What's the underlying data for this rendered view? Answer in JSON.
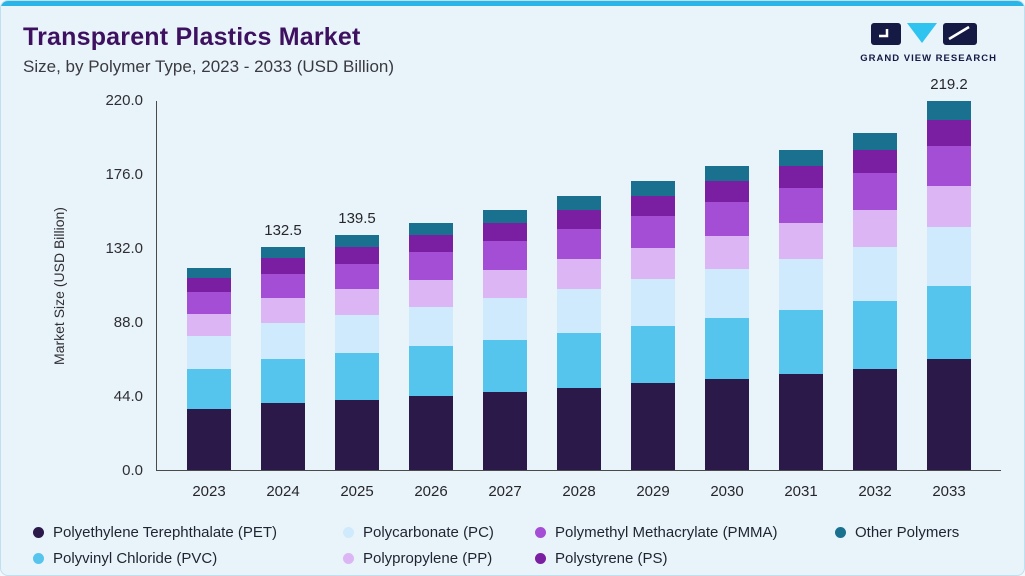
{
  "header": {
    "title": "Transparent Plastics Market",
    "subtitle": "Size, by Polymer Type, 2023 - 2033 (USD Billion)",
    "brand": "GRAND VIEW RESEARCH"
  },
  "chart_data": {
    "type": "bar",
    "stacked": true,
    "title": "Transparent Plastics Market Size, by Polymer Type, 2023 - 2033 (USD Billion)",
    "ylabel": "Market Size (USD Billion)",
    "xlabel": "",
    "ylim": [
      0,
      220
    ],
    "ytick_labels": [
      "0.0",
      "44.0",
      "88.0",
      "132.0",
      "176.0",
      "220.0"
    ],
    "grid": false,
    "legend_position": "bottom",
    "categories": [
      "2023",
      "2024",
      "2025",
      "2026",
      "2027",
      "2028",
      "2029",
      "2030",
      "2031",
      "2032",
      "2033"
    ],
    "series": [
      {
        "name": "Polyethylene Terephthalate (PET)",
        "color": "#2b1949",
        "values": [
          36.1,
          39.8,
          41.9,
          44.1,
          46.4,
          48.9,
          51.5,
          54.2,
          57.1,
          60.2,
          65.8
        ]
      },
      {
        "name": "Polyvinyl Chloride (PVC)",
        "color": "#56c5ee",
        "values": [
          24.1,
          26.5,
          27.9,
          29.4,
          31.0,
          32.6,
          34.3,
          36.2,
          38.1,
          40.1,
          43.8
        ]
      },
      {
        "name": "Polycarbonate (PC)",
        "color": "#cfeafc",
        "values": [
          19.2,
          21.2,
          22.3,
          23.5,
          24.8,
          26.1,
          27.5,
          28.9,
          30.5,
          32.1,
          35.1
        ]
      },
      {
        "name": "Polypropylene (PP)",
        "color": "#dcb5f5",
        "values": [
          13.2,
          14.6,
          15.3,
          16.2,
          17.0,
          17.9,
          18.9,
          19.9,
          20.9,
          22.1,
          24.1
        ]
      },
      {
        "name": "Polymethyl Methacrylate (PMMA)",
        "color": "#a44ed6",
        "values": [
          13.2,
          14.6,
          15.3,
          16.2,
          17.0,
          17.9,
          18.9,
          19.9,
          20.9,
          22.1,
          24.1
        ]
      },
      {
        "name": "Polystyrene (PS)",
        "color": "#7a1fa2",
        "values": [
          8.4,
          9.2,
          9.8,
          10.3,
          10.8,
          11.4,
          12.0,
          12.7,
          13.3,
          14.0,
          15.3
        ]
      },
      {
        "name": "Other Polymers",
        "color": "#19708f",
        "values": [
          6.0,
          6.6,
          7.0,
          7.4,
          7.7,
          8.2,
          8.6,
          9.0,
          9.5,
          10.0,
          11.0
        ]
      }
    ],
    "totals": [
      120.2,
      132.5,
      139.5,
      147.1,
      154.7,
      163.0,
      171.7,
      180.8,
      190.3,
      200.6,
      219.2
    ],
    "data_labels": {
      "2024": "132.5",
      "2025": "139.5",
      "2033": "219.2"
    },
    "legend_order": [
      0,
      2,
      4,
      6,
      1,
      3,
      5
    ]
  }
}
